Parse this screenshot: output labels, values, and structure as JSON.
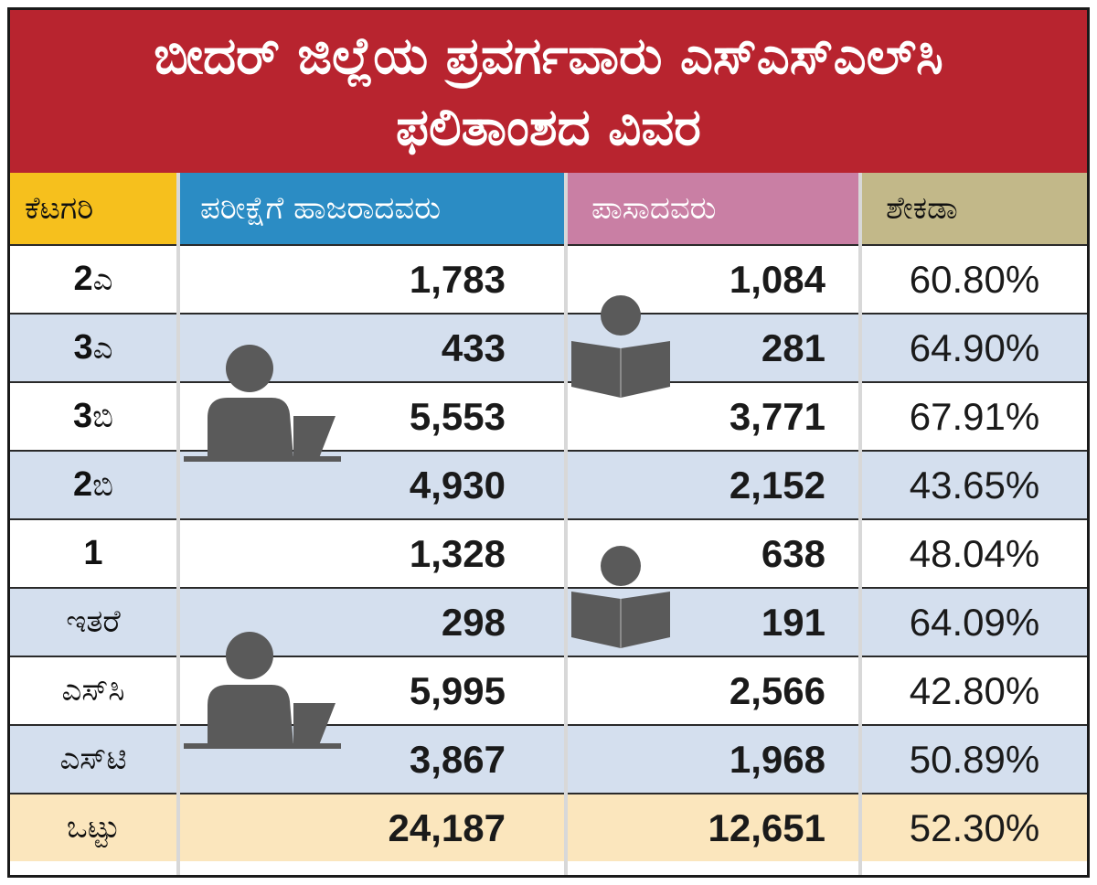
{
  "title": {
    "line1": "ಬೀದರ್ ಜಿಲ್ಲೆಯ ಪ್ರವರ್ಗವಾರು ಎಸ್‌ಎಸ್‌ಎಲ್‌ಸಿ",
    "line2": "ಫಲಿತಾಂಶದ ವಿವರ"
  },
  "colors": {
    "title_bg": "#b8242f",
    "category_header": "#f6c01d",
    "appeared_header": "#2b8cc4",
    "passed_header": "#c97fa4",
    "percent_header": "#c2b889",
    "row_alt": "#d4dfee",
    "total_row": "#fbe6bd"
  },
  "icons": [
    "student-laptop-icon",
    "student-reading-icon"
  ],
  "chart_data": {
    "type": "table",
    "title": "ಬೀದರ್ ಜಿಲ್ಲೆಯ ಪ್ರವರ್ಗವಾರು ಎಸ್‌ಎಸ್‌ಎಲ್‌ಸಿ ಫಲಿತಾಂಶದ ವಿವರ",
    "columns": [
      "ಕೆಟಗರಿ",
      "ಪರೀಕ್ಷೆಗೆ ಹಾಜರಾದವರು",
      "ಪಾಸಾದವರು",
      "ಶೇಕಡಾ"
    ],
    "rows": [
      {
        "num": "2",
        "suffix": "ಎ",
        "appeared": "1,783",
        "passed": "1,084",
        "percent": "60.80%"
      },
      {
        "num": "3",
        "suffix": "ಎ",
        "appeared": "433",
        "passed": "281",
        "percent": "64.90%"
      },
      {
        "num": "3",
        "suffix": "ಬಿ",
        "appeared": "5,553",
        "passed": "3,771",
        "percent": "67.91%"
      },
      {
        "num": "2",
        "suffix": "ಬಿ",
        "appeared": "4,930",
        "passed": "2,152",
        "percent": "43.65%"
      },
      {
        "num": "1",
        "suffix": "",
        "appeared": "1,328",
        "passed": "638",
        "percent": "48.04%"
      },
      {
        "num": "",
        "suffix": "ಇತರೆ",
        "appeared": "298",
        "passed": "191",
        "percent": "64.09%"
      },
      {
        "num": "",
        "suffix": "ಎಸ್‌ಸಿ",
        "appeared": "5,995",
        "passed": "2,566",
        "percent": "42.80%"
      },
      {
        "num": "",
        "suffix": "ಎಸ್‌ಟಿ",
        "appeared": "3,867",
        "passed": "1,968",
        "percent": "50.89%"
      }
    ],
    "total": {
      "label": "ಒಟ್ಟು",
      "appeared": "24,187",
      "passed": "12,651",
      "percent": "52.30%"
    }
  }
}
